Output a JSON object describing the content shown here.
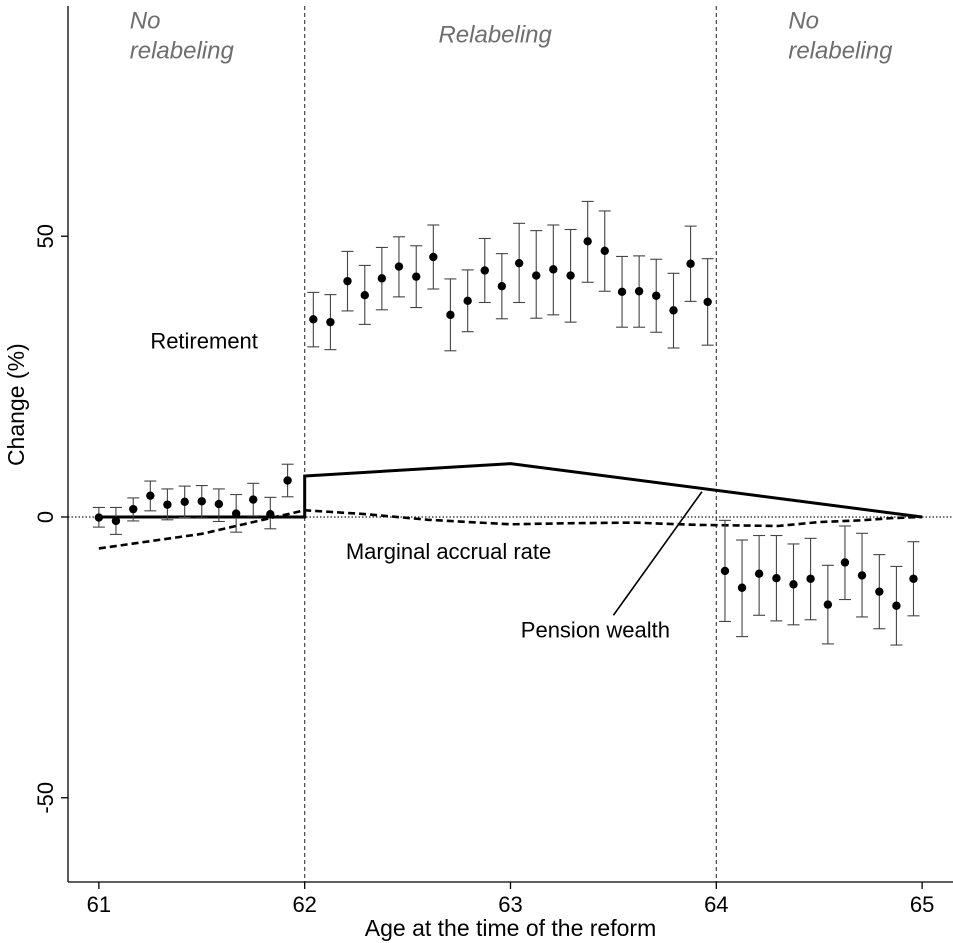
{
  "chart_data": {
    "type": "scatter",
    "xlabel": "Age at the time of the reform",
    "ylabel": "Change (%)",
    "xlim": [
      60.85,
      65.15
    ],
    "ylim": [
      -65,
      91
    ],
    "xticks": [
      61,
      62,
      63,
      64,
      65
    ],
    "yticks": [
      -50,
      0,
      50
    ],
    "ytick_labels": [
      "-50",
      "0",
      "50"
    ],
    "reference_lines": {
      "vertical_dashed_x": [
        62,
        64
      ],
      "horizontal_dotted_y": 0
    },
    "region_labels": [
      {
        "lines": [
          "No",
          "relabeling"
        ],
        "x": 61.15,
        "y": 87
      },
      {
        "lines": [
          "Relabeling"
        ],
        "x": 62.65,
        "y": 84.5
      },
      {
        "lines": [
          "No",
          "relabeling"
        ],
        "x": 64.35,
        "y": 87
      }
    ],
    "annotations": [
      {
        "text": "Retirement",
        "x": 61.25,
        "y": 30
      },
      {
        "text": "Marginal accrual rate",
        "x": 62.2,
        "y": -7.5
      },
      {
        "text": "Pension wealth",
        "x": 63.05,
        "y": -21.5
      }
    ],
    "pointer_line": {
      "from": [
        63.5,
        -17.5
      ],
      "to": [
        63.93,
        4.5
      ]
    },
    "series": [
      {
        "name": "Retirement",
        "kind": "points_with_ci",
        "points": [
          {
            "x": 61.0,
            "y": -0.1,
            "lo": -1.8,
            "hi": 1.7
          },
          {
            "x": 61.083,
            "y": -0.7,
            "lo": -3.1,
            "hi": 1.7
          },
          {
            "x": 61.167,
            "y": 1.4,
            "lo": -0.7,
            "hi": 3.4
          },
          {
            "x": 61.25,
            "y": 3.8,
            "lo": 1.1,
            "hi": 6.4
          },
          {
            "x": 61.333,
            "y": 2.2,
            "lo": -0.5,
            "hi": 5.0
          },
          {
            "x": 61.417,
            "y": 2.7,
            "lo": -0.1,
            "hi": 5.5
          },
          {
            "x": 61.5,
            "y": 2.8,
            "lo": -0.2,
            "hi": 5.6
          },
          {
            "x": 61.583,
            "y": 2.3,
            "lo": -0.8,
            "hi": 5.0
          },
          {
            "x": 61.667,
            "y": 0.6,
            "lo": -2.7,
            "hi": 4.0
          },
          {
            "x": 61.75,
            "y": 3.1,
            "lo": 0.2,
            "hi": 6.0
          },
          {
            "x": 61.833,
            "y": 0.5,
            "lo": -2.1,
            "hi": 3.5
          },
          {
            "x": 61.917,
            "y": 6.5,
            "lo": 3.6,
            "hi": 9.4
          },
          {
            "x": 62.042,
            "y": 35.2,
            "lo": 30.3,
            "hi": 40.0
          },
          {
            "x": 62.125,
            "y": 34.7,
            "lo": 29.8,
            "hi": 39.6
          },
          {
            "x": 62.208,
            "y": 42.0,
            "lo": 36.7,
            "hi": 47.3
          },
          {
            "x": 62.292,
            "y": 39.5,
            "lo": 34.3,
            "hi": 44.8
          },
          {
            "x": 62.375,
            "y": 42.5,
            "lo": 36.9,
            "hi": 48.0
          },
          {
            "x": 62.458,
            "y": 44.6,
            "lo": 39.2,
            "hi": 49.9
          },
          {
            "x": 62.542,
            "y": 42.8,
            "lo": 37.3,
            "hi": 48.3
          },
          {
            "x": 62.625,
            "y": 46.3,
            "lo": 40.6,
            "hi": 52.0
          },
          {
            "x": 62.708,
            "y": 36.0,
            "lo": 29.6,
            "hi": 42.4
          },
          {
            "x": 62.792,
            "y": 38.5,
            "lo": 33.0,
            "hi": 44.0
          },
          {
            "x": 62.875,
            "y": 43.9,
            "lo": 38.2,
            "hi": 49.6
          },
          {
            "x": 62.958,
            "y": 41.1,
            "lo": 35.3,
            "hi": 46.9
          },
          {
            "x": 63.042,
            "y": 45.2,
            "lo": 38.2,
            "hi": 52.3
          },
          {
            "x": 63.125,
            "y": 43.0,
            "lo": 35.4,
            "hi": 51.0
          },
          {
            "x": 63.208,
            "y": 44.1,
            "lo": 36.0,
            "hi": 52.0
          },
          {
            "x": 63.292,
            "y": 43.0,
            "lo": 34.7,
            "hi": 51.2
          },
          {
            "x": 63.375,
            "y": 49.1,
            "lo": 41.8,
            "hi": 56.2
          },
          {
            "x": 63.458,
            "y": 47.4,
            "lo": 40.2,
            "hi": 54.5
          },
          {
            "x": 63.542,
            "y": 40.1,
            "lo": 33.8,
            "hi": 46.4
          },
          {
            "x": 63.625,
            "y": 40.2,
            "lo": 33.8,
            "hi": 46.5
          },
          {
            "x": 63.708,
            "y": 39.4,
            "lo": 32.9,
            "hi": 45.9
          },
          {
            "x": 63.792,
            "y": 36.8,
            "lo": 30.1,
            "hi": 43.4
          },
          {
            "x": 63.875,
            "y": 45.1,
            "lo": 38.4,
            "hi": 51.8
          },
          {
            "x": 63.958,
            "y": 38.3,
            "lo": 30.6,
            "hi": 46.0
          },
          {
            "x": 64.042,
            "y": -9.6,
            "lo": -18.6,
            "hi": -0.6
          },
          {
            "x": 64.125,
            "y": -12.6,
            "lo": -21.3,
            "hi": -4.1
          },
          {
            "x": 64.208,
            "y": -10.1,
            "lo": -17.5,
            "hi": -3.3
          },
          {
            "x": 64.292,
            "y": -10.9,
            "lo": -18.5,
            "hi": -3.3
          },
          {
            "x": 64.375,
            "y": -12.0,
            "lo": -19.2,
            "hi": -4.8
          },
          {
            "x": 64.458,
            "y": -11.0,
            "lo": -18.3,
            "hi": -3.8
          },
          {
            "x": 64.542,
            "y": -15.6,
            "lo": -22.6,
            "hi": -8.6
          },
          {
            "x": 64.625,
            "y": -8.1,
            "lo": -14.7,
            "hi": -1.6
          },
          {
            "x": 64.708,
            "y": -10.4,
            "lo": -17.8,
            "hi": -2.9
          },
          {
            "x": 64.792,
            "y": -13.3,
            "lo": -19.9,
            "hi": -6.7
          },
          {
            "x": 64.875,
            "y": -15.8,
            "lo": -22.8,
            "hi": -8.8
          },
          {
            "x": 64.958,
            "y": -11.0,
            "lo": -17.6,
            "hi": -4.4
          }
        ]
      },
      {
        "name": "Pension wealth",
        "kind": "line_solid",
        "x": [
          61.0,
          62.0,
          62.0,
          63.0,
          65.0
        ],
        "y": [
          0.0,
          0.0,
          7.3,
          9.5,
          0.0
        ]
      },
      {
        "name": "Marginal accrual rate",
        "kind": "line_dashed",
        "x": [
          61.0,
          61.5,
          62.0,
          62.3,
          62.6,
          63.0,
          63.3,
          63.6,
          63.9,
          64.1,
          64.3,
          64.5,
          64.7,
          64.85,
          65.0
        ],
        "y": [
          -5.6,
          -3.0,
          1.2,
          0.5,
          -0.5,
          -1.3,
          -1.1,
          -1.0,
          -1.4,
          -1.5,
          -1.6,
          -0.9,
          -0.6,
          -0.2,
          0.0
        ]
      }
    ]
  }
}
